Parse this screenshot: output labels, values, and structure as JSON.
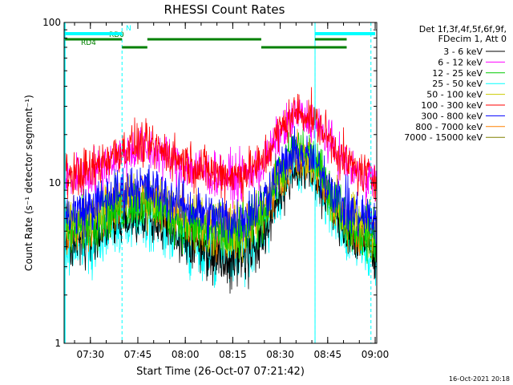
{
  "chart_data": {
    "type": "line",
    "title": "RHESSI Count Rates",
    "xlabel": "Start Time (26-Oct-07 07:21:42)",
    "ylabel": "Count Rate (s⁻¹ detector segment⁻¹)",
    "yscale": "log",
    "xlim": [
      "07:21:42",
      "09:00:30"
    ],
    "ylim": [
      1,
      100
    ],
    "x_ticks": [
      "07:30",
      "07:45",
      "08:00",
      "08:15",
      "08:30",
      "08:45",
      "09:00"
    ],
    "y_ticks": [
      "1",
      "10",
      "100"
    ],
    "grid": false,
    "legend_position": "right",
    "legend_header": [
      "Det 1f,3f,4f,5f,6f,9f,",
      "FDecim 1, Att 0"
    ],
    "series": [
      {
        "name": "3 - 6 keV",
        "color": "#000000",
        "x": [
          "07:22",
          "07:30",
          "07:38",
          "07:45",
          "07:52",
          "08:00",
          "08:08",
          "08:16",
          "08:24",
          "08:30",
          "08:35",
          "08:40",
          "08:45",
          "08:50",
          "08:55",
          "09:00"
        ],
        "values": [
          4.2,
          4.6,
          5.6,
          6.3,
          5.6,
          4.5,
          3.7,
          3.4,
          4.2,
          8.5,
          12.5,
          11.5,
          7.8,
          5.2,
          4.3,
          4.0
        ]
      },
      {
        "name": "6 - 12 keV",
        "color": "#ff00ff",
        "x": [
          "07:22",
          "07:30",
          "07:38",
          "07:45",
          "07:52",
          "08:00",
          "08:08",
          "08:16",
          "08:24",
          "08:30",
          "08:35",
          "08:40",
          "08:45",
          "08:50",
          "08:55",
          "09:00"
        ],
        "values": [
          10.5,
          11.5,
          14.5,
          16.5,
          15.0,
          12.8,
          11.2,
          10.6,
          12.5,
          20.5,
          26.5,
          24.5,
          18.5,
          13.5,
          11.2,
          10.5
        ]
      },
      {
        "name": "12 - 25 keV",
        "color": "#00cc00",
        "x": [
          "07:22",
          "07:30",
          "07:38",
          "07:45",
          "07:52",
          "08:00",
          "08:08",
          "08:16",
          "08:24",
          "08:30",
          "08:35",
          "08:40",
          "08:45",
          "08:50",
          "08:55",
          "09:00"
        ],
        "values": [
          5.0,
          5.6,
          6.8,
          7.6,
          6.8,
          5.6,
          4.8,
          4.6,
          6.0,
          12.0,
          17.0,
          15.0,
          9.5,
          6.3,
          5.0,
          4.8
        ]
      },
      {
        "name": "25 - 50 keV",
        "color": "#00ffff",
        "x": [
          "07:22",
          "07:30",
          "07:38",
          "07:45",
          "07:52",
          "08:00",
          "08:08",
          "08:16",
          "08:24",
          "08:30",
          "08:35",
          "08:40",
          "08:45",
          "08:50",
          "08:55",
          "09:00"
        ],
        "values": [
          3.9,
          4.3,
          5.4,
          6.1,
          5.4,
          4.3,
          3.6,
          3.4,
          4.4,
          9.0,
          12.5,
          11.5,
          7.5,
          4.8,
          3.9,
          3.7
        ]
      },
      {
        "name": "50 - 100 keV",
        "color": "#cccc00",
        "x": [
          "07:22",
          "07:30",
          "07:38",
          "07:45",
          "07:52",
          "08:00",
          "08:08",
          "08:16",
          "08:24",
          "08:30",
          "08:35",
          "08:40",
          "08:45",
          "08:50",
          "08:55",
          "09:00"
        ],
        "values": [
          5.4,
          6.0,
          7.4,
          8.3,
          7.5,
          6.2,
          5.3,
          5.0,
          6.4,
          11.5,
          15.0,
          13.5,
          9.2,
          6.3,
          5.4,
          5.1
        ]
      },
      {
        "name": "100 - 300 keV",
        "color": "#ff0000",
        "x": [
          "07:22",
          "07:30",
          "07:38",
          "07:45",
          "07:52",
          "08:00",
          "08:08",
          "08:16",
          "08:24",
          "08:30",
          "08:35",
          "08:40",
          "08:45",
          "08:50",
          "08:55",
          "09:00"
        ],
        "values": [
          11.0,
          12.0,
          15.5,
          17.5,
          16.0,
          13.5,
          11.8,
          11.0,
          13.0,
          21.5,
          28.0,
          26.0,
          19.5,
          14.0,
          11.6,
          10.8
        ]
      },
      {
        "name": "300 - 800 keV",
        "color": "#0000ff",
        "x": [
          "07:22",
          "07:30",
          "07:38",
          "07:45",
          "07:52",
          "08:00",
          "08:08",
          "08:16",
          "08:24",
          "08:30",
          "08:35",
          "08:40",
          "08:45",
          "08:50",
          "08:55",
          "09:00"
        ],
        "values": [
          6.3,
          7.0,
          8.6,
          9.6,
          8.7,
          7.2,
          6.1,
          5.8,
          7.4,
          12.2,
          15.5,
          14.0,
          10.2,
          7.2,
          6.2,
          5.9
        ]
      },
      {
        "name": "800 - 7000 keV",
        "color": "#ff8000",
        "x": [
          "07:22",
          "07:30",
          "07:38",
          "07:45",
          "07:52",
          "08:00",
          "08:08",
          "08:16",
          "08:24",
          "08:30",
          "08:35",
          "08:40",
          "08:45",
          "08:50",
          "08:55",
          "09:00"
        ],
        "values": [
          5.2,
          5.8,
          7.2,
          8.2,
          7.3,
          6.0,
          5.1,
          4.8,
          6.2,
          11.0,
          14.8,
          13.3,
          9.0,
          6.1,
          5.2,
          4.9
        ]
      },
      {
        "name": "7000 - 15000 keV",
        "color": "#808000",
        "x": [],
        "values": []
      }
    ],
    "annotations": {
      "dashed_vertical_lines": [
        "07:40",
        "08:41:00",
        "08:58:40"
      ],
      "attenuator_bars": [
        {
          "label": "RD0",
          "color": "#008000",
          "segments": [
            [
              "07:22",
              "07:40"
            ],
            [
              "07:48",
              "08:24"
            ],
            [
              "08:41",
              "08:51"
            ]
          ]
        },
        {
          "label": "RD4",
          "color": "#008000",
          "segments": [
            [
              "07:40",
              "07:48"
            ],
            [
              "08:24",
              "08:51"
            ]
          ]
        },
        {
          "label": "N",
          "color": "#00ffff",
          "segments": [
            [
              "07:22",
              "07:40"
            ],
            [
              "08:41",
              "09:00"
            ]
          ]
        }
      ]
    }
  },
  "footer": {
    "timestamp": "16-Oct-2021 20:18"
  }
}
